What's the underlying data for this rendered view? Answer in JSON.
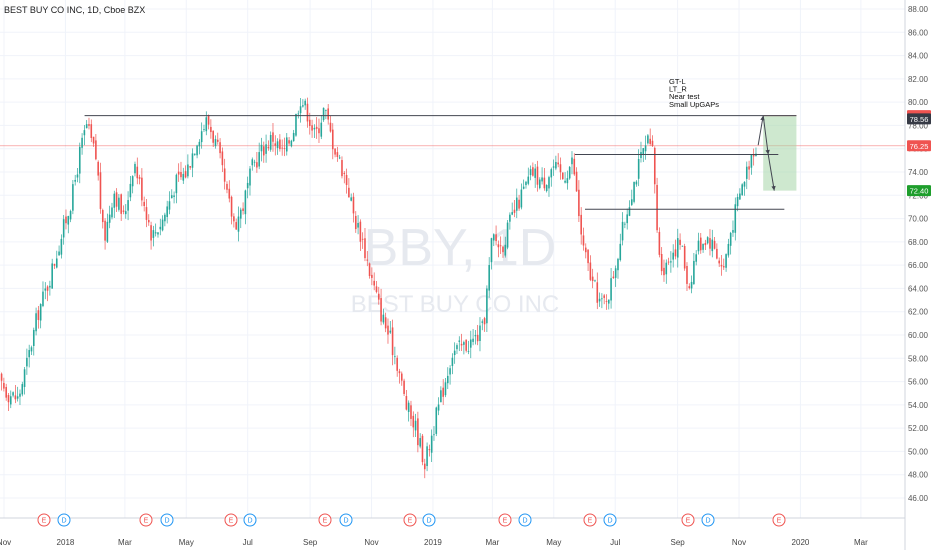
{
  "header": {
    "title": "BEST BUY CO INC, 1D, Cboe BZX"
  },
  "watermark": {
    "symbol": "BBY, 1D",
    "name": "BEST BUY CO INC"
  },
  "colors": {
    "up": "#26a69a",
    "down": "#ef5350",
    "line": "#434651",
    "target_zone": "#a5d6a7",
    "badge_dark": "#363a45",
    "badge_red": "#ef5350",
    "badge_green": "#1e9e2c",
    "dividend": "#2196f3",
    "earnings": "#ef5350"
  },
  "y_axis": {
    "ticks": [
      "88.00",
      "86.00",
      "84.00",
      "82.00",
      "80.00",
      "78.00",
      "76.00",
      "74.00",
      "72.00",
      "70.00",
      "68.00",
      "66.00",
      "64.00",
      "62.00",
      "60.00",
      "58.00",
      "56.00",
      "54.00",
      "52.00",
      "50.00",
      "48.00",
      "46.00"
    ]
  },
  "x_axis": {
    "labels": [
      "Nov",
      "2018",
      "Mar",
      "May",
      "Jul",
      "Sep",
      "Nov",
      "2019",
      "Mar",
      "May",
      "Jul",
      "Sep",
      "Nov",
      "2020",
      "Mar"
    ]
  },
  "price_badges": [
    {
      "value": "78.84",
      "style": "red"
    },
    {
      "value": "78.56",
      "style": "dark"
    },
    {
      "value": "76.25",
      "style": "red"
    },
    {
      "value": "72.40",
      "style": "green"
    }
  ],
  "annotation": {
    "lines": [
      "GT-L",
      "LT_R",
      "Near test",
      "Small UpGAPs"
    ]
  },
  "events": [
    {
      "type": "E",
      "label": "E"
    },
    {
      "type": "D",
      "label": "D"
    },
    {
      "type": "E",
      "label": "E"
    },
    {
      "type": "D",
      "label": "D"
    },
    {
      "type": "E",
      "label": "E"
    },
    {
      "type": "D",
      "label": "D"
    },
    {
      "type": "E",
      "label": "E"
    },
    {
      "type": "D",
      "label": "D"
    },
    {
      "type": "E",
      "label": "E"
    },
    {
      "type": "D",
      "label": "D"
    },
    {
      "type": "E",
      "label": "E"
    },
    {
      "type": "D",
      "label": "D"
    },
    {
      "type": "E",
      "label": "E"
    },
    {
      "type": "D",
      "label": "D"
    },
    {
      "type": "E",
      "label": "E"
    },
    {
      "type": "D",
      "label": "D"
    },
    {
      "type": "E",
      "label": "E"
    }
  ],
  "chart_data": {
    "type": "candlestick",
    "symbol": "BBY",
    "interval": "1D",
    "ylim": [
      45,
      89
    ],
    "horizontal_levels": [
      78.84,
      75.5,
      70.8
    ],
    "target_zone": {
      "top": 78.84,
      "bottom": 72.4
    },
    "last_price": 76.25,
    "anchors": [
      [
        "2017-10-25",
        56.5
      ],
      [
        "2017-11-05",
        55.0
      ],
      [
        "2017-11-15",
        54.5
      ],
      [
        "2017-11-25",
        58.0
      ],
      [
        "2017-12-05",
        62.0
      ],
      [
        "2017-12-15",
        64.5
      ],
      [
        "2017-12-28",
        68.5
      ],
      [
        "2018-01-08",
        72.0
      ],
      [
        "2018-01-15",
        75.5
      ],
      [
        "2018-01-22",
        78.0
      ],
      [
        "2018-02-01",
        75.0
      ],
      [
        "2018-02-08",
        68.0
      ],
      [
        "2018-02-18",
        72.5
      ],
      [
        "2018-02-28",
        70.0
      ],
      [
        "2018-03-10",
        75.0
      ],
      [
        "2018-03-20",
        71.5
      ],
      [
        "2018-03-28",
        68.5
      ],
      [
        "2018-04-08",
        70.0
      ],
      [
        "2018-04-20",
        73.0
      ],
      [
        "2018-05-01",
        74.0
      ],
      [
        "2018-05-12",
        77.0
      ],
      [
        "2018-05-22",
        78.5
      ],
      [
        "2018-06-01",
        76.0
      ],
      [
        "2018-06-10",
        72.0
      ],
      [
        "2018-06-18",
        69.5
      ],
      [
        "2018-06-26",
        71.0
      ],
      [
        "2018-07-06",
        74.5
      ],
      [
        "2018-07-16",
        76.0
      ],
      [
        "2018-07-26",
        77.0
      ],
      [
        "2018-08-05",
        75.5
      ],
      [
        "2018-08-15",
        77.5
      ],
      [
        "2018-08-22",
        80.5
      ],
      [
        "2018-08-30",
        79.0
      ],
      [
        "2018-09-06",
        77.0
      ],
      [
        "2018-09-15",
        79.5
      ],
      [
        "2018-09-22",
        77.0
      ],
      [
        "2018-09-30",
        75.0
      ],
      [
        "2018-10-08",
        73.0
      ],
      [
        "2018-10-15",
        70.0
      ],
      [
        "2018-10-22",
        68.5
      ],
      [
        "2018-10-30",
        65.5
      ],
      [
        "2018-11-10",
        62.0
      ],
      [
        "2018-11-20",
        59.5
      ],
      [
        "2018-11-27",
        57.5
      ],
      [
        "2018-12-05",
        54.0
      ],
      [
        "2018-12-15",
        52.0
      ],
      [
        "2018-12-24",
        49.0
      ],
      [
        "2018-12-31",
        51.5
      ],
      [
        "2019-01-10",
        55.0
      ],
      [
        "2019-01-20",
        58.5
      ],
      [
        "2019-01-31",
        59.0
      ],
      [
        "2019-02-10",
        59.5
      ],
      [
        "2019-02-20",
        60.5
      ],
      [
        "2019-03-01",
        68.5
      ],
      [
        "2019-03-10",
        67.5
      ],
      [
        "2019-03-20",
        70.0
      ],
      [
        "2019-03-30",
        72.0
      ],
      [
        "2019-04-10",
        74.0
      ],
      [
        "2019-04-20",
        73.0
      ],
      [
        "2019-04-30",
        74.5
      ],
      [
        "2019-05-10",
        73.5
      ],
      [
        "2019-05-20",
        75.0
      ],
      [
        "2019-05-25",
        71.0
      ],
      [
        "2019-05-30",
        67.5
      ],
      [
        "2019-06-08",
        64.5
      ],
      [
        "2019-06-18",
        62.5
      ],
      [
        "2019-06-26",
        64.0
      ],
      [
        "2019-07-06",
        68.0
      ],
      [
        "2019-07-16",
        72.0
      ],
      [
        "2019-07-26",
        75.0
      ],
      [
        "2019-08-02",
        76.5
      ],
      [
        "2019-08-08",
        75.5
      ],
      [
        "2019-08-12",
        68.0
      ],
      [
        "2019-08-18",
        65.5
      ],
      [
        "2019-08-25",
        67.0
      ],
      [
        "2019-09-04",
        68.0
      ],
      [
        "2019-09-12",
        64.0
      ],
      [
        "2019-09-20",
        67.5
      ],
      [
        "2019-09-30",
        68.5
      ],
      [
        "2019-10-08",
        67.5
      ],
      [
        "2019-10-16",
        65.5
      ],
      [
        "2019-10-24",
        69.0
      ],
      [
        "2019-10-31",
        71.5
      ],
      [
        "2019-11-08",
        74.0
      ],
      [
        "2019-11-15",
        76.0
      ],
      [
        "2019-11-20",
        76.3
      ]
    ],
    "projection": [
      [
        "2019-11-20",
        76.3
      ],
      [
        "2019-11-25",
        78.84
      ],
      [
        "2019-11-30",
        75.5
      ],
      [
        "2019-12-06",
        72.4
      ]
    ],
    "dividend_dates": [
      "2018-01-10"
    ]
  }
}
